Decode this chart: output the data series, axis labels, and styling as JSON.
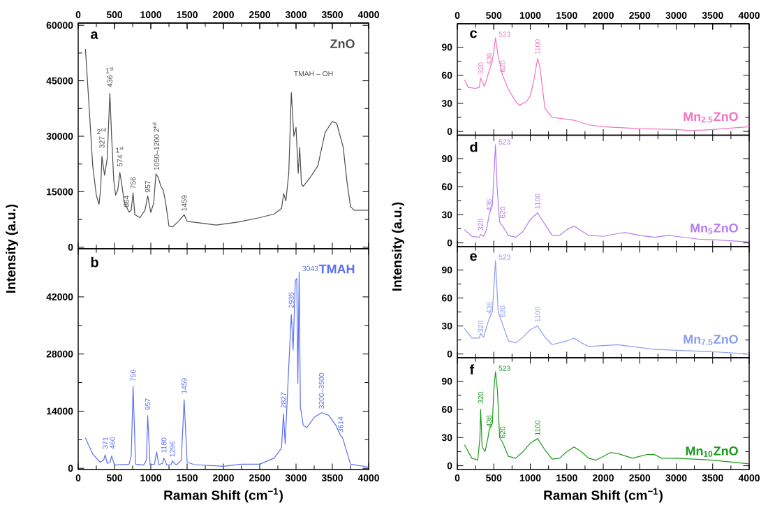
{
  "chart_data": [
    {
      "type": "line",
      "xlim": [
        0,
        4000
      ],
      "xticks": [
        0,
        500,
        1000,
        1500,
        2000,
        2500,
        3000,
        3500,
        4000
      ],
      "x2lim": [
        0,
        4000
      ],
      "x2ticks": [
        0,
        500,
        1000,
        1500,
        2000,
        2500,
        3000,
        3500,
        4000
      ],
      "tick_labels": "y",
      "ylim": [
        -400,
        60600
      ],
      "yticks": [
        0,
        15000,
        30000,
        45000,
        60000
      ],
      "ylabel": "Intensity (a.u.)",
      "series": [
        {
          "name": "ZnO",
          "color": "#4d4d4d",
          "x": [
            100,
            150,
            200,
            250,
            287,
            310,
            327,
            345,
            363,
            400,
            436,
            460,
            490,
            515,
            545,
            574,
            600,
            636,
            664,
            700,
            730,
            756,
            780,
            850,
            920,
            957,
            1000,
            1040,
            1070,
            1100,
            1140,
            1170,
            1200,
            1250,
            1300,
            1380,
            1459,
            1500,
            1700,
            1900,
            2200,
            2500,
            2700,
            2800,
            2830,
            2860,
            2900,
            2935,
            2970,
            3000,
            3030,
            3050,
            3075,
            3100,
            3200,
            3300,
            3400,
            3500,
            3560,
            3650,
            3700,
            3750,
            3800,
            4000
          ],
          "values": [
            53500,
            38000,
            22000,
            14000,
            11600,
            16000,
            24600,
            22000,
            19500,
            24000,
            41600,
            30000,
            18000,
            14100,
            15500,
            20200,
            17000,
            12000,
            11000,
            9500,
            10000,
            14700,
            8800,
            8000,
            10000,
            13900,
            9400,
            12000,
            19800,
            19000,
            16400,
            15500,
            12600,
            5700,
            5500,
            7000,
            8800,
            7000,
            6500,
            6000,
            6800,
            8000,
            9000,
            10500,
            14500,
            12500,
            20000,
            41800,
            30000,
            32400,
            20000,
            27000,
            17000,
            16500,
            19000,
            22000,
            31000,
            34000,
            33500,
            27000,
            18000,
            11000,
            10000,
            10000
          ]
        }
      ],
      "annotations": [
        "a",
        {
          "text": "327",
          "x": 327,
          "y": 26500
        },
        "2$^{nd}$",
        {
          "text": "436",
          "x": 436,
          "y": 43000
        },
        "1$^{st}$",
        {
          "text": "574",
          "x": 574,
          "y": 21500
        },
        "1$^{st}$",
        {
          "text": "664",
          "x": 664,
          "y": 10500
        },
        {
          "text": "756",
          "x": 756,
          "y": 15500
        },
        {
          "text": "957",
          "x": 957,
          "y": 14500
        },
        {
          "text": "1050–1200 2$^{nd}$",
          "x": 1070,
          "y": 20500
        },
        {
          "text": "1459",
          "x": 1459,
          "y": 9500
        },
        "TMAH – OH"
      ]
    },
    {
      "type": "line",
      "xlim": [
        0,
        4000
      ],
      "xticks": [
        0,
        500,
        1000,
        1500,
        2000,
        2500,
        3000,
        3500,
        4000
      ],
      "ylim": [
        -300,
        53800
      ],
      "yticks": [
        0,
        14000,
        28000,
        42000
      ],
      "xlabel": "Raman Shift (cm$^{−1}$)",
      "series": [
        {
          "name": "TMAH",
          "color": "#5b6ff2",
          "x": [
            100,
            200,
            300,
            350,
            371,
            400,
            440,
            460,
            500,
            700,
            730,
            756,
            790,
            900,
            940,
            957,
            990,
            1050,
            1080,
            1110,
            1160,
            1180,
            1220,
            1280,
            1296,
            1350,
            1420,
            1459,
            1500,
            1600,
            2000,
            2250,
            2500,
            2700,
            2800,
            2827,
            2850,
            2900,
            2935,
            2960,
            2990,
            3010,
            3025,
            3043,
            3060,
            3100,
            3150,
            3250,
            3350,
            3450,
            3550,
            3614,
            3640,
            3700,
            3750,
            4000
          ],
          "values": [
            7400,
            3500,
            1500,
            2000,
            3300,
            1200,
            1500,
            3000,
            800,
            1000,
            3000,
            20000,
            1000,
            800,
            2000,
            12900,
            900,
            1000,
            4000,
            900,
            1200,
            2500,
            800,
            900,
            1800,
            800,
            2000,
            16800,
            1500,
            900,
            500,
            1000,
            1000,
            2500,
            5000,
            13400,
            6000,
            25000,
            37700,
            29000,
            46000,
            46500,
            20800,
            48100,
            15000,
            10500,
            10000,
            12500,
            13600,
            13000,
            10500,
            8000,
            7500,
            4000,
            1000,
            300
          ]
        }
      ],
      "annotations": [
        "b",
        {
          "text": "371",
          "x": 371,
          "y": 4500
        },
        {
          "text": "460",
          "x": 470,
          "y": 4500
        },
        {
          "text": "756",
          "x": 756,
          "y": 21000
        },
        {
          "text": "957",
          "x": 957,
          "y": 14000
        },
        {
          "text": "1180",
          "x": 1180,
          "y": 3500
        },
        {
          "text": "1296",
          "x": 1296,
          "y": 2500
        },
        {
          "text": "1459",
          "x": 1459,
          "y": 18000
        },
        {
          "text": "2827",
          "x": 2827,
          "y": 14500
        },
        {
          "text": "2935",
          "x": 2935,
          "y": 39000
        },
        {
          "text": "3043",
          "x": 3043,
          "y": 48100
        },
        {
          "text": "3200–3500",
          "x": 3350,
          "y": 14300
        },
        {
          "text": "3614",
          "x": 3614,
          "y": 8500
        }
      ]
    },
    {
      "type": "line",
      "xlim": [
        0,
        4000
      ],
      "xticks": [
        0,
        500,
        1000,
        1500,
        2000,
        2500,
        3000,
        3500,
        4000
      ],
      "x2lim": [
        0,
        4000
      ],
      "x2ticks": [
        0,
        500,
        1000,
        1500,
        2000,
        2500,
        3000,
        3500,
        4000
      ],
      "tick_labels": "y",
      "ylim": [
        -4,
        115
      ],
      "yticks": [
        0,
        30,
        60,
        90
      ],
      "series": [
        {
          "name": "Mn$_{2.5}$ZnO",
          "color": "#f272c2",
          "x": [
            100,
            150,
            250,
            300,
            320,
            370,
            400,
            436,
            470,
            500,
            523,
            560,
            620,
            700,
            800,
            850,
            950,
            1000,
            1050,
            1100,
            1130,
            1200,
            1300,
            1500,
            1600,
            1800,
            2000,
            2500,
            3000,
            3200,
            3500,
            4000
          ],
          "values": [
            55,
            47,
            46,
            47,
            57,
            48,
            55,
            65,
            72,
            85,
            100,
            80,
            60,
            45,
            32,
            28,
            32,
            38,
            55,
            78,
            70,
            25,
            15,
            13,
            12,
            7,
            5,
            3,
            2,
            1,
            2,
            5
          ]
        }
      ],
      "annotations": [
        "c",
        {
          "text": "320",
          "x": 320,
          "y": 60
        },
        {
          "text": "436",
          "x": 436,
          "y": 70
        },
        {
          "text": "523",
          "x": 523,
          "y": 100
        },
        {
          "text": "620",
          "x": 620,
          "y": 62
        },
        {
          "text": "1100",
          "x": 1100,
          "y": 81
        }
      ]
    },
    {
      "type": "line",
      "xlim": [
        0,
        4000
      ],
      "xticks": [
        0,
        500,
        1000,
        1500,
        2000,
        2500,
        3000,
        3500,
        4000
      ],
      "tick_labels": "y",
      "ylim": [
        -4,
        115
      ],
      "yticks": [
        0,
        30,
        60,
        90
      ],
      "ylabel": "Intensity (a.u.)",
      "series": [
        {
          "name": "Mn$_{5}$ZnO",
          "color": "#b57bf0",
          "x": [
            100,
            200,
            300,
            320,
            360,
            400,
            436,
            480,
            500,
            523,
            545,
            580,
            620,
            700,
            800,
            900,
            1000,
            1100,
            1200,
            1300,
            1400,
            1500,
            1600,
            1700,
            1800,
            2000,
            2200,
            2300,
            2500,
            2700,
            2900,
            3000,
            3300,
            3600,
            4000
          ],
          "values": [
            14,
            7,
            6,
            9,
            7,
            14,
            30,
            40,
            70,
            105,
            60,
            22,
            18,
            8,
            6,
            12,
            25,
            32,
            20,
            8,
            8,
            14,
            18,
            13,
            8,
            7,
            10,
            11,
            8,
            6,
            8,
            7,
            4,
            3,
            1
          ]
        }
      ],
      "annotations": [
        "d",
        {
          "text": "320",
          "x": 320,
          "y": 12
        },
        {
          "text": "436",
          "x": 436,
          "y": 33
        },
        {
          "text": "523",
          "x": 523,
          "y": 104
        },
        {
          "text": "620",
          "x": 620,
          "y": 25
        },
        {
          "text": "1100",
          "x": 1100,
          "y": 35
        }
      ]
    },
    {
      "type": "line",
      "xlim": [
        0,
        4000
      ],
      "xticks": [
        0,
        500,
        1000,
        1500,
        2000,
        2500,
        3000,
        3500,
        4000
      ],
      "tick_labels": "y",
      "ylim": [
        -4,
        115
      ],
      "yticks": [
        0,
        30,
        60,
        90
      ],
      "series": [
        {
          "name": "Mn$_{7.5}$ZnO",
          "color": "#8c9cf2",
          "x": [
            100,
            200,
            300,
            320,
            360,
            436,
            480,
            500,
            523,
            560,
            620,
            700,
            800,
            900,
            1000,
            1100,
            1200,
            1300,
            1500,
            1600,
            1700,
            1800,
            2000,
            2200,
            2500,
            2700,
            3000,
            3300,
            3600,
            4000
          ],
          "values": [
            27,
            17,
            17,
            22,
            18,
            38,
            45,
            70,
            100,
            45,
            32,
            14,
            12,
            18,
            26,
            30,
            18,
            10,
            14,
            17,
            12,
            8,
            9,
            10,
            7,
            5,
            4,
            3,
            2,
            0
          ]
        }
      ],
      "annotations": [
        "e",
        {
          "text": "320",
          "x": 320,
          "y": 22
        },
        {
          "text": "436",
          "x": 436,
          "y": 42
        },
        {
          "text": "523",
          "x": 523,
          "y": 100
        },
        {
          "text": "620",
          "x": 620,
          "y": 38
        },
        {
          "text": "1100",
          "x": 1100,
          "y": 33
        }
      ]
    },
    {
      "type": "line",
      "xlim": [
        0,
        4000
      ],
      "xticks": [
        0,
        500,
        1000,
        1500,
        2000,
        2500,
        3000,
        3500,
        4000
      ],
      "ylim": [
        -4,
        115
      ],
      "yticks": [
        0,
        30,
        60,
        90
      ],
      "xlabel": "Raman Shift (cm$^{−1}$)",
      "series": [
        {
          "name": "Mn$_{10}$ZnO",
          "color": "#1a9a1a",
          "x": [
            100,
            200,
            280,
            310,
            320,
            340,
            380,
            420,
            436,
            480,
            500,
            523,
            550,
            580,
            620,
            700,
            800,
            900,
            1000,
            1100,
            1200,
            1300,
            1400,
            1500,
            1600,
            1700,
            1800,
            1900,
            2000,
            2100,
            2200,
            2400,
            2500,
            2600,
            2700,
            2800,
            3000,
            3500,
            4000
          ],
          "values": [
            22,
            8,
            6,
            30,
            60,
            20,
            15,
            30,
            38,
            45,
            80,
            100,
            80,
            30,
            25,
            10,
            8,
            15,
            24,
            29,
            17,
            7,
            8,
            15,
            20,
            15,
            8,
            6,
            10,
            14,
            13,
            8,
            10,
            12,
            12,
            8,
            8,
            6,
            2
          ]
        }
      ],
      "annotations": [
        "f",
        {
          "text": "320",
          "x": 320,
          "y": 65
        },
        {
          "text": "436",
          "x": 436,
          "y": 40
        },
        {
          "text": "523",
          "x": 523,
          "y": 100
        },
        {
          "text": "620",
          "x": 620,
          "y": 28
        },
        {
          "text": "1100",
          "x": 1100,
          "y": 31
        }
      ]
    }
  ]
}
